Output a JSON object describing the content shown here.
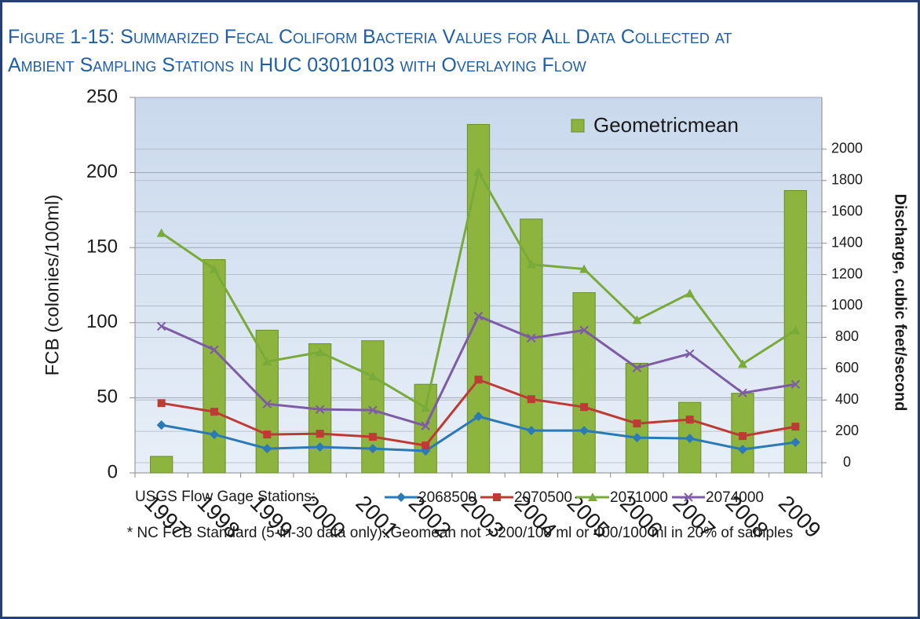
{
  "chart_data": {
    "type": "bar_line",
    "title": [
      "Figure 1-15: Summarized Fecal Coliform Bacteria Values for All Data Collected at",
      "Ambient Sampling Stations in HUC 03010103 with Overlaying Flow"
    ],
    "categories": [
      "1997",
      "1998",
      "1999",
      "2000",
      "2001",
      "2002",
      "2003",
      "2004",
      "2005",
      "2006",
      "2007",
      "2008",
      "2009"
    ],
    "ylabel": "FCB  (colonies/100ml)",
    "y2label": "Discharge, cubic feet/second",
    "ylim": [
      0,
      250
    ],
    "yticks": [
      0,
      50,
      100,
      150,
      200,
      250
    ],
    "y2lim": [
      -65,
      2330
    ],
    "y2ticks": [
      0,
      200,
      400,
      600,
      800,
      1000,
      1200,
      1400,
      1600,
      1800,
      2000
    ],
    "grid": true,
    "series": [
      {
        "name": "Geometricmean",
        "type": "bar",
        "axis": "y",
        "color": "#8db43e",
        "values": [
          11,
          142,
          95,
          86,
          88,
          59,
          232,
          169,
          120,
          73,
          47,
          53,
          188
        ]
      },
      {
        "name": "2068500",
        "type": "line",
        "axis": "y2",
        "color": "#2a7ab8",
        "marker": "diamond",
        "values": [
          240,
          180,
          90,
          100,
          90,
          75,
          295,
          205,
          205,
          160,
          155,
          85,
          130
        ]
      },
      {
        "name": "2070500",
        "type": "line",
        "axis": "y2",
        "color": "#be3b35",
        "marker": "square",
        "values": [
          380,
          325,
          180,
          185,
          165,
          110,
          530,
          405,
          355,
          250,
          275,
          170,
          230
        ]
      },
      {
        "name": "2071000",
        "type": "line",
        "axis": "y2",
        "color": "#79aa3a",
        "marker": "triangle",
        "values": [
          1465,
          1235,
          645,
          705,
          550,
          350,
          1855,
          1265,
          1235,
          910,
          1080,
          630,
          845
        ]
      },
      {
        "name": "2074000",
        "type": "line",
        "axis": "y2",
        "color": "#7d5ba6",
        "marker": "x",
        "values": [
          870,
          720,
          375,
          340,
          335,
          235,
          935,
          795,
          845,
          605,
          695,
          445,
          500
        ]
      }
    ],
    "legend_title": "USGS Flow Gage Stations:",
    "note": "* NC FCB Standard (5-in-30 data only): Geomean not > 200/100 ml or 400/100 ml in 20% of samples"
  }
}
